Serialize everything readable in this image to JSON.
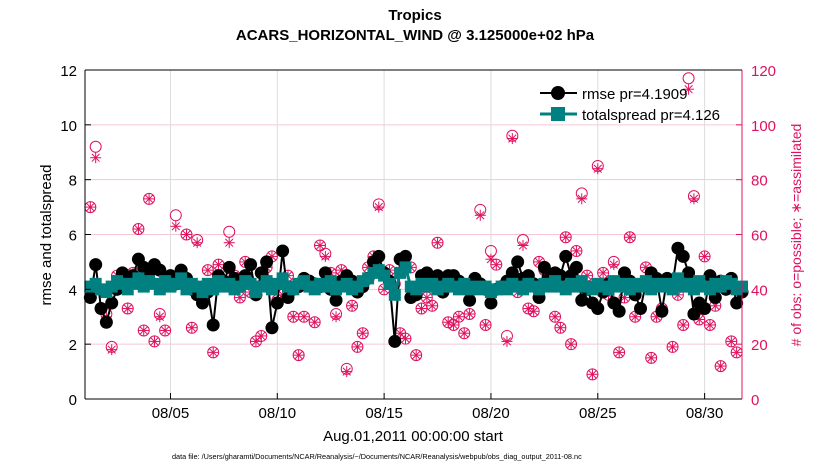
{
  "chart_data": {
    "type": "line",
    "title": "Tropics",
    "subtitle": "ACARS_HORIZONTAL_WIND @ 3.125000e+02 hPa",
    "xlabel": "Aug.01,2011 00:00:00 start",
    "ylabel": "rmse and totalspread",
    "y2label": "# of obs: o=possible; ∗=assimilated",
    "footnote": "data file: /Users/gharamti/Documents/NCAR/Reanalysis/~/Documents/NCAR/Reanalysis/webpub/obs_diag_output_2011-08.nc",
    "xlim": [
      0,
      30.75
    ],
    "ylim": [
      0,
      12
    ],
    "y2lim": [
      0,
      120
    ],
    "x_ticks": [
      {
        "value": 4,
        "label": "08/05"
      },
      {
        "value": 9,
        "label": "08/10"
      },
      {
        "value": 14,
        "label": "08/15"
      },
      {
        "value": 19,
        "label": "08/20"
      },
      {
        "value": 24,
        "label": "08/25"
      },
      {
        "value": 29,
        "label": "08/30"
      }
    ],
    "y_ticks": [
      "0",
      "2",
      "4",
      "6",
      "8",
      "10",
      "12"
    ],
    "y2_ticks": [
      "0",
      "20",
      "40",
      "60",
      "80",
      "100",
      "120"
    ],
    "grid": true,
    "legend_position": "top-right",
    "x_start": 0.25,
    "x_step": 0.25,
    "series": [
      {
        "name": "rmse pr=4.1909",
        "color": "#000000",
        "marker": "circle",
        "values": [
          3.7,
          4.9,
          3.3,
          2.8,
          3.5,
          4.0,
          4.6,
          4.3,
          4.5,
          5.1,
          4.8,
          4.6,
          4.9,
          4.7,
          4.3,
          4.5,
          4.2,
          4.7,
          4.4,
          4.0,
          3.8,
          3.5,
          3.9,
          2.7,
          4.5,
          4.3,
          4.8,
          4.4,
          4.2,
          4.5,
          4.9,
          3.8,
          4.6,
          5.0,
          2.6,
          3.5,
          5.4,
          3.7,
          4.0,
          4.1,
          4.4,
          4.3,
          4.2,
          4.1,
          4.6,
          4.0,
          3.6,
          4.3,
          4.5,
          4.3,
          3.9,
          4.1,
          4.4,
          5.0,
          5.2,
          4.6,
          4.3,
          2.1,
          5.1,
          5.2,
          3.7,
          3.8,
          4.5,
          4.6,
          4.4,
          4.5,
          3.9,
          4.5,
          4.5,
          4.3,
          4.1,
          3.6,
          4.4,
          4.2,
          4.0,
          3.5,
          4.0,
          4.1,
          4.3,
          4.6,
          5.0,
          4.4,
          4.5,
          4.2,
          3.7,
          4.8,
          4.4,
          4.6,
          4.5,
          5.2,
          4.5,
          4.8,
          3.6,
          4.0,
          3.5,
          3.3,
          3.9,
          4.2,
          3.5,
          3.2,
          4.6,
          4.3,
          3.8,
          3.3,
          4.2,
          4.6,
          4.4,
          3.2,
          4.4,
          4.2,
          5.5,
          5.2,
          4.6,
          3.1,
          3.5,
          3.3,
          4.5,
          3.7,
          4.3,
          4.0,
          4.4,
          3.5,
          3.9
        ]
      },
      {
        "name": "totalspread pr=4.126",
        "color": "#008080",
        "marker": "square",
        "values": [
          4.1,
          4.2,
          4.0,
          3.9,
          4.1,
          4.3,
          4.2,
          4.0,
          4.2,
          4.4,
          4.1,
          4.3,
          4.2,
          4.0,
          4.3,
          4.1,
          4.2,
          4.4,
          4.0,
          4.2,
          4.1,
          3.9,
          4.2,
          4.0,
          4.3,
          4.1,
          4.2,
          4.0,
          4.1,
          4.3,
          4.2,
          3.9,
          4.1,
          4.3,
          4.0,
          4.2,
          4.4,
          4.1,
          4.0,
          4.2,
          4.3,
          4.1,
          4.0,
          4.2,
          4.1,
          4.3,
          4.0,
          4.1,
          4.2,
          4.0,
          4.1,
          4.3,
          4.4,
          4.6,
          4.7,
          4.5,
          4.2,
          3.8,
          4.6,
          4.8,
          4.1,
          4.0,
          4.2,
          4.1,
          4.2,
          4.0,
          4.1,
          4.2,
          4.1,
          4.0,
          4.2,
          4.0,
          4.1,
          4.0,
          4.1,
          3.9,
          4.0,
          4.1,
          4.0,
          4.2,
          4.1,
          4.0,
          4.2,
          4.1,
          4.0,
          4.2,
          4.1,
          4.3,
          4.1,
          4.0,
          4.2,
          4.1,
          4.3,
          4.1,
          4.0,
          4.2,
          4.1,
          4.0,
          4.3,
          4.1,
          4.2,
          4.0,
          4.2,
          4.1,
          4.3,
          4.0,
          4.2,
          4.1,
          4.2,
          4.0,
          4.4,
          4.1,
          4.2,
          4.0,
          4.3,
          4.1,
          4.0,
          4.2,
          4.1,
          4.3,
          4.2,
          4.0,
          4.1
        ]
      }
    ],
    "obs_series": [
      {
        "name": "possible",
        "marker": "circle-open",
        "color": "#e0115f",
        "values": [
          70,
          92,
          33,
          31,
          19,
          45,
          43,
          33,
          46,
          62,
          25,
          73,
          21,
          31,
          25,
          44,
          67,
          43,
          60,
          26,
          58,
          37,
          47,
          17,
          49,
          41,
          61,
          45,
          37,
          50,
          39,
          21,
          23,
          48,
          52,
          36,
          38,
          45,
          30,
          16,
          30,
          41,
          28,
          56,
          53,
          46,
          31,
          47,
          11,
          34,
          19,
          24,
          48,
          52,
          71,
          40,
          47,
          42,
          24,
          22,
          48,
          16,
          33,
          37,
          34,
          57,
          43,
          28,
          27,
          30,
          24,
          31,
          44,
          69,
          27,
          54,
          49,
          40,
          23,
          96,
          39,
          58,
          33,
          32,
          50,
          47,
          45,
          30,
          26,
          59,
          20,
          54,
          75,
          45,
          9,
          85,
          46,
          38,
          50,
          17,
          37,
          59,
          30,
          42,
          48,
          15,
          30,
          33,
          43,
          19,
          38,
          27,
          117,
          74,
          29,
          52,
          27,
          34,
          12,
          40,
          21,
          17,
          40
        ]
      },
      {
        "name": "assimilated",
        "marker": "asterisk",
        "color": "#e0115f",
        "values": [
          70,
          88,
          33,
          30,
          18,
          45,
          42,
          33,
          46,
          62,
          25,
          73,
          21,
          30,
          25,
          44,
          63,
          43,
          60,
          26,
          57,
          37,
          47,
          17,
          49,
          41,
          57,
          45,
          37,
          50,
          39,
          21,
          23,
          48,
          52,
          36,
          38,
          45,
          30,
          16,
          30,
          41,
          28,
          56,
          52,
          46,
          30,
          47,
          10,
          34,
          19,
          24,
          48,
          52,
          70,
          40,
          47,
          42,
          24,
          22,
          48,
          16,
          33,
          37,
          34,
          57,
          43,
          28,
          27,
          30,
          24,
          31,
          44,
          67,
          27,
          51,
          49,
          40,
          21,
          95,
          39,
          56,
          33,
          32,
          50,
          47,
          45,
          30,
          26,
          59,
          20,
          54,
          73,
          45,
          9,
          84,
          46,
          38,
          49,
          17,
          37,
          59,
          30,
          42,
          48,
          15,
          30,
          33,
          43,
          19,
          38,
          27,
          113,
          73,
          29,
          52,
          27,
          34,
          12,
          40,
          21,
          17,
          40
        ]
      }
    ]
  }
}
